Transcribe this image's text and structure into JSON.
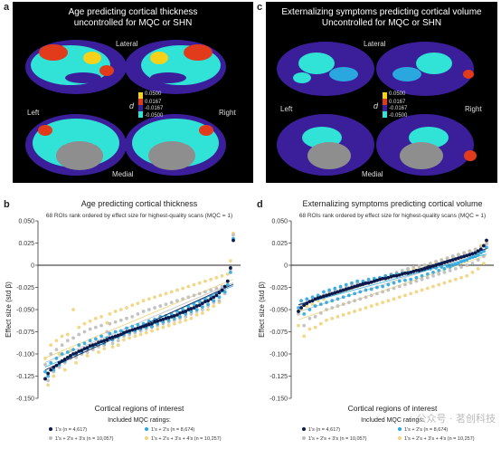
{
  "panels": {
    "a": {
      "letter": "a",
      "title_line1": "Age predicting cortical thickness",
      "title_line2": "uncontrolled for MQC or SHN",
      "labels": {
        "lateral": "Lateral",
        "left": "Left",
        "right": "Right",
        "medial": "Medial"
      },
      "scale_symbol": "d",
      "scale_ticks": [
        "0.0500",
        "0.0167",
        "-0.0167",
        "-0.0500"
      ]
    },
    "c": {
      "letter": "c",
      "title_line1": "Externalizing symptoms predicting cortical volume",
      "title_line2": "Uncontrolled for MQC or SHN",
      "labels": {
        "lateral": "Lateral",
        "left": "Left",
        "right": "Right",
        "medial": "Medial"
      },
      "scale_symbol": "d",
      "scale_ticks": [
        "0.0500",
        "0.0167",
        "-0.0167",
        "-0.0500"
      ]
    },
    "b": {
      "letter": "b"
    },
    "d": {
      "letter": "d"
    }
  },
  "colors": {
    "cyan": "#31e2d6",
    "purple": "#3b1f9a",
    "red": "#e23b1b",
    "yellow": "#f6d21a",
    "series_navy": "#0b1a4a",
    "series_blue": "#2aa7de",
    "series_grey": "#bdbdbd",
    "series_yellow": "#f1d37a"
  },
  "chart_data": [
    {
      "type": "scatter",
      "title": "Age predicting cortical thickness",
      "subtitle": "68 ROIs rank ordered by effect size for highest-quality scans (MQC = 1)",
      "xlabel": "Cortical regions of interest",
      "ylabel": "Effect size (std β)",
      "ylim": [
        -0.15,
        0.05
      ],
      "yticks": [
        "0.050",
        "0.025",
        "0",
        "-0.025",
        "-0.050",
        "-0.075",
        "-0.100",
        "-0.125",
        "-0.150"
      ],
      "ytick_values": [
        0.05,
        0.025,
        0,
        -0.025,
        -0.05,
        -0.075,
        -0.1,
        -0.125,
        -0.15
      ],
      "legend_title": "Included MQC ratings:",
      "series": [
        {
          "name": "1's (n = 4,617)",
          "color": "#0b1a4a",
          "values": [
            -0.128,
            -0.122,
            -0.118,
            -0.115,
            -0.113,
            -0.11,
            -0.108,
            -0.106,
            -0.104,
            -0.102,
            -0.1,
            -0.099,
            -0.097,
            -0.096,
            -0.094,
            -0.093,
            -0.091,
            -0.09,
            -0.089,
            -0.087,
            -0.086,
            -0.085,
            -0.084,
            -0.082,
            -0.081,
            -0.08,
            -0.079,
            -0.078,
            -0.076,
            -0.075,
            -0.074,
            -0.073,
            -0.072,
            -0.071,
            -0.07,
            -0.069,
            -0.068,
            -0.067,
            -0.066,
            -0.064,
            -0.063,
            -0.062,
            -0.061,
            -0.06,
            -0.059,
            -0.058,
            -0.057,
            -0.056,
            -0.054,
            -0.053,
            -0.052,
            -0.05,
            -0.049,
            -0.048,
            -0.046,
            -0.045,
            -0.043,
            -0.041,
            -0.04,
            -0.038,
            -0.036,
            -0.034,
            -0.031,
            -0.028,
            -0.024,
            -0.018,
            -0.003,
            0.028
          ]
        },
        {
          "name": "1's + 2's (n = 8,674)",
          "color": "#2aa7de",
          "values": [
            -0.12,
            -0.125,
            -0.11,
            -0.118,
            -0.105,
            -0.112,
            -0.1,
            -0.108,
            -0.098,
            -0.103,
            -0.095,
            -0.101,
            -0.09,
            -0.098,
            -0.088,
            -0.094,
            -0.085,
            -0.092,
            -0.083,
            -0.089,
            -0.08,
            -0.088,
            -0.082,
            -0.077,
            -0.084,
            -0.075,
            -0.081,
            -0.074,
            -0.078,
            -0.071,
            -0.076,
            -0.069,
            -0.074,
            -0.067,
            -0.072,
            -0.066,
            -0.07,
            -0.063,
            -0.069,
            -0.061,
            -0.066,
            -0.058,
            -0.064,
            -0.057,
            -0.062,
            -0.055,
            -0.06,
            -0.052,
            -0.058,
            -0.05,
            -0.055,
            -0.047,
            -0.052,
            -0.044,
            -0.05,
            -0.041,
            -0.047,
            -0.038,
            -0.044,
            -0.035,
            -0.04,
            -0.032,
            -0.036,
            -0.029,
            -0.03,
            -0.022,
            -0.008,
            0.03
          ]
        },
        {
          "name": "1's + 2's + 3's (n = 10,057)",
          "color": "#bdbdbd",
          "values": [
            -0.112,
            -0.13,
            -0.1,
            -0.12,
            -0.095,
            -0.115,
            -0.09,
            -0.11,
            -0.085,
            -0.105,
            -0.082,
            -0.104,
            -0.078,
            -0.1,
            -0.075,
            -0.098,
            -0.072,
            -0.095,
            -0.07,
            -0.092,
            -0.068,
            -0.09,
            -0.075,
            -0.066,
            -0.088,
            -0.064,
            -0.085,
            -0.062,
            -0.08,
            -0.06,
            -0.078,
            -0.058,
            -0.076,
            -0.055,
            -0.074,
            -0.052,
            -0.072,
            -0.05,
            -0.07,
            -0.048,
            -0.068,
            -0.046,
            -0.066,
            -0.044,
            -0.064,
            -0.042,
            -0.062,
            -0.04,
            -0.06,
            -0.038,
            -0.058,
            -0.036,
            -0.055,
            -0.034,
            -0.052,
            -0.032,
            -0.05,
            -0.03,
            -0.046,
            -0.028,
            -0.042,
            -0.026,
            -0.04,
            -0.024,
            -0.032,
            -0.018,
            -0.005,
            0.034
          ]
        },
        {
          "name": "1's + 2's + 3's + 4's (n = 10,257)",
          "color": "#f1d37a",
          "values": [
            -0.105,
            -0.135,
            -0.09,
            -0.125,
            -0.085,
            -0.1,
            -0.08,
            -0.118,
            -0.078,
            -0.096,
            -0.05,
            -0.11,
            -0.07,
            -0.1,
            -0.066,
            -0.102,
            -0.063,
            -0.092,
            -0.06,
            -0.098,
            -0.058,
            -0.094,
            -0.065,
            -0.055,
            -0.092,
            -0.052,
            -0.09,
            -0.05,
            -0.084,
            -0.048,
            -0.082,
            -0.045,
            -0.08,
            -0.043,
            -0.078,
            -0.04,
            -0.076,
            -0.038,
            -0.074,
            -0.036,
            -0.072,
            -0.034,
            -0.07,
            -0.032,
            -0.068,
            -0.03,
            -0.066,
            -0.028,
            -0.064,
            -0.026,
            -0.062,
            -0.024,
            -0.06,
            -0.022,
            -0.056,
            -0.02,
            -0.054,
            -0.018,
            -0.05,
            -0.016,
            -0.046,
            -0.014,
            -0.042,
            -0.012,
            -0.03,
            -0.01,
            0.005,
            0.036
          ]
        }
      ]
    },
    {
      "type": "scatter",
      "title": "Externalizing symptoms predicting cortical volume",
      "subtitle": "68 ROIs rank ordered by effect size for highest-quality scans (MQC = 1)",
      "xlabel": "Cortical regions of interest",
      "ylabel": "Effect size (std β)",
      "ylim": [
        -0.15,
        0.05
      ],
      "yticks": [
        "0.050",
        "0.025",
        "0",
        "-0.025",
        "-0.050",
        "-0.075",
        "-0.100",
        "-0.125",
        "-0.150"
      ],
      "ytick_values": [
        0.05,
        0.025,
        0,
        -0.025,
        -0.05,
        -0.075,
        -0.1,
        -0.125,
        -0.15
      ],
      "legend_title": "Included MQC ratings:",
      "series": [
        {
          "name": "1's (n = 4,617)",
          "color": "#0b1a4a",
          "values": [
            -0.052,
            -0.048,
            -0.045,
            -0.043,
            -0.041,
            -0.04,
            -0.038,
            -0.037,
            -0.036,
            -0.035,
            -0.034,
            -0.033,
            -0.032,
            -0.031,
            -0.03,
            -0.029,
            -0.028,
            -0.027,
            -0.026,
            -0.025,
            -0.024,
            -0.023,
            -0.022,
            -0.021,
            -0.02,
            -0.02,
            -0.019,
            -0.018,
            -0.017,
            -0.016,
            -0.015,
            -0.015,
            -0.014,
            -0.013,
            -0.012,
            -0.012,
            -0.011,
            -0.01,
            -0.009,
            -0.009,
            -0.008,
            -0.007,
            -0.006,
            -0.006,
            -0.005,
            -0.004,
            -0.003,
            -0.002,
            -0.001,
            0.0,
            0.001,
            0.002,
            0.003,
            0.004,
            0.005,
            0.006,
            0.007,
            0.008,
            0.009,
            0.01,
            0.011,
            0.012,
            0.013,
            0.014,
            0.016,
            0.018,
            0.022,
            0.028
          ]
        },
        {
          "name": "1's + 2's (n = 8,674)",
          "color": "#2aa7de",
          "values": [
            -0.048,
            -0.04,
            -0.055,
            -0.038,
            -0.05,
            -0.036,
            -0.046,
            -0.034,
            -0.044,
            -0.03,
            -0.042,
            -0.028,
            -0.04,
            -0.026,
            -0.038,
            -0.024,
            -0.036,
            -0.022,
            -0.034,
            -0.02,
            -0.032,
            -0.018,
            -0.03,
            -0.018,
            -0.028,
            -0.016,
            -0.027,
            -0.015,
            -0.025,
            -0.014,
            -0.024,
            -0.012,
            -0.022,
            -0.011,
            -0.02,
            -0.01,
            -0.018,
            -0.009,
            -0.017,
            -0.008,
            -0.016,
            -0.007,
            -0.014,
            -0.006,
            -0.012,
            -0.005,
            -0.01,
            -0.004,
            -0.008,
            -0.003,
            -0.006,
            -0.002,
            -0.004,
            -0.001,
            -0.002,
            0.0,
            0.001,
            0.002,
            0.004,
            0.005,
            0.006,
            0.008,
            0.009,
            0.01,
            0.012,
            0.014,
            0.016,
            0.02
          ]
        },
        {
          "name": "1's + 2's + 3's (n = 10,057)",
          "color": "#bdbdbd",
          "values": [
            -0.055,
            -0.045,
            -0.068,
            -0.042,
            -0.06,
            -0.04,
            -0.058,
            -0.036,
            -0.054,
            -0.034,
            -0.05,
            -0.03,
            -0.048,
            -0.028,
            -0.046,
            -0.026,
            -0.044,
            -0.024,
            -0.042,
            -0.022,
            -0.04,
            -0.02,
            -0.038,
            -0.02,
            -0.036,
            -0.018,
            -0.034,
            -0.016,
            -0.032,
            -0.014,
            -0.03,
            -0.012,
            -0.028,
            -0.01,
            -0.026,
            -0.008,
            -0.024,
            -0.006,
            -0.022,
            -0.004,
            -0.02,
            -0.002,
            -0.018,
            -0.001,
            -0.016,
            0.0,
            -0.014,
            0.002,
            -0.012,
            0.004,
            -0.01,
            0.006,
            -0.008,
            0.008,
            -0.006,
            0.01,
            -0.004,
            0.012,
            -0.002,
            0.014,
            0.0,
            0.016,
            0.002,
            0.018,
            0.006,
            0.02,
            0.01,
            0.024
          ]
        },
        {
          "name": "1's + 2's + 3's + 4's (n = 10,257)",
          "color": "#f1d37a",
          "values": [
            -0.068,
            -0.05,
            -0.08,
            -0.046,
            -0.072,
            -0.044,
            -0.07,
            -0.04,
            -0.066,
            -0.038,
            -0.062,
            -0.034,
            -0.06,
            -0.032,
            -0.058,
            -0.03,
            -0.056,
            -0.028,
            -0.054,
            -0.026,
            -0.052,
            -0.024,
            -0.05,
            -0.022,
            -0.048,
            -0.02,
            -0.046,
            -0.018,
            -0.044,
            -0.016,
            -0.042,
            -0.014,
            -0.04,
            -0.012,
            -0.038,
            -0.01,
            -0.036,
            -0.008,
            -0.034,
            -0.006,
            -0.032,
            -0.004,
            -0.03,
            -0.002,
            -0.028,
            0.0,
            -0.026,
            0.002,
            -0.024,
            0.004,
            -0.022,
            0.006,
            -0.02,
            0.008,
            -0.018,
            0.01,
            -0.016,
            0.012,
            -0.014,
            0.014,
            -0.012,
            0.016,
            -0.008,
            0.018,
            -0.004,
            0.022,
            0.002,
            0.026
          ]
        }
      ]
    }
  ],
  "watermark": "公众号 · 茗创科技"
}
